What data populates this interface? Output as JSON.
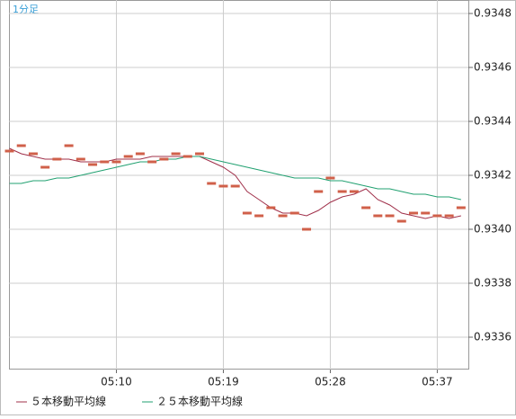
{
  "chart_data": {
    "type": "line",
    "subtitle": "1分足",
    "categories": [
      null,
      null,
      null,
      null,
      null,
      null,
      null,
      null,
      null,
      "05:10",
      null,
      null,
      null,
      null,
      null,
      null,
      null,
      null,
      "05:19",
      null,
      null,
      null,
      null,
      null,
      null,
      null,
      null,
      "05:28",
      null,
      null,
      null,
      null,
      null,
      null,
      null,
      null,
      "05:37",
      null,
      null
    ],
    "values": [
      0.93429,
      0.93431,
      0.93428,
      0.93423,
      0.93426,
      0.93431,
      0.93426,
      0.93424,
      0.93425,
      0.93425,
      0.93427,
      0.93428,
      0.93425,
      0.93426,
      0.93428,
      0.93427,
      0.93428,
      0.93417,
      0.93416,
      0.93416,
      0.93406,
      0.93405,
      0.93408,
      0.93405,
      0.93406,
      0.934,
      0.93414,
      0.93419,
      0.93414,
      0.93414,
      0.93408,
      0.93405,
      0.93405,
      0.93403,
      0.93406,
      0.93406,
      0.93405,
      0.93405,
      0.93408
    ],
    "color": "#d0604a",
    "series": [
      {
        "name": "５本移動平均線",
        "color": "#a0304a",
        "values": [
          0.9343,
          0.93428,
          0.93427,
          0.93426,
          0.93426,
          0.93426,
          0.93425,
          0.93425,
          0.93425,
          0.93426,
          0.93426,
          0.93426,
          0.93427,
          0.93427,
          0.93427,
          0.93427,
          0.93427,
          0.93425,
          0.93423,
          0.9342,
          0.93414,
          0.93411,
          0.93408,
          0.93406,
          0.93406,
          0.93405,
          0.93407,
          0.9341,
          0.93412,
          0.93413,
          0.93415,
          0.93411,
          0.93409,
          0.93406,
          0.93405,
          0.93404,
          0.93405,
          0.93404,
          0.93405
        ]
      },
      {
        "name": "２５本移動平均線",
        "color": "#20a070",
        "values": [
          0.93417,
          0.93417,
          0.93418,
          0.93418,
          0.93419,
          0.93419,
          0.9342,
          0.93421,
          0.93422,
          0.93423,
          0.93424,
          0.93425,
          0.93425,
          0.93426,
          0.93426,
          0.93427,
          0.93427,
          0.93426,
          0.93425,
          0.93424,
          0.93423,
          0.93422,
          0.93421,
          0.9342,
          0.93419,
          0.93419,
          0.93419,
          0.93418,
          0.93418,
          0.93417,
          0.93416,
          0.93415,
          0.93415,
          0.93414,
          0.93413,
          0.93413,
          0.93412,
          0.93412,
          0.93411
        ]
      }
    ],
    "ylim": [
      0.93348,
      0.93485
    ],
    "yticks": [
      0.9348,
      0.9346,
      0.9344,
      0.9342,
      {
        "value": 0.934,
        "label": "0.9340"
      },
      0.9338,
      0.9336
    ],
    "grid": true
  }
}
